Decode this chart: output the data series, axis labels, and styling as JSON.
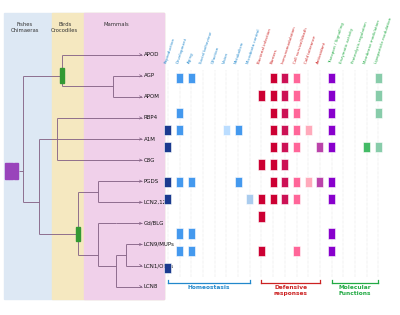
{
  "proteins": [
    "APOD",
    "AGP",
    "APOM",
    "RBP4",
    "A1M",
    "C8G",
    "PGDS",
    "LCN2,12",
    "Gd/BLG",
    "LCN9/MUPs",
    "LCN1/OBPs",
    "LCN8"
  ],
  "columns": [
    "Reproduction",
    "Development",
    "Aging",
    "Social behaviour",
    "Olfaction",
    "Vision",
    "Metabolism",
    "Microbiota control",
    "Bacterial infection",
    "Barriers",
    "Immunomodulation",
    "Cell survival/death",
    "Cold tolerance",
    "Antioxidant",
    "Transport / Signalling",
    "Enzymatic activity",
    "Proteolysis regulation",
    "Membrane modulation",
    "Lipoparticle modulation"
  ],
  "matrix": {
    "APOD": [
      0,
      1,
      1,
      0,
      0,
      0,
      0,
      0,
      0,
      1,
      1,
      1,
      0,
      0,
      1,
      0,
      0,
      0,
      1
    ],
    "AGP": [
      0,
      0,
      0,
      0,
      0,
      0,
      0,
      0,
      1,
      1,
      1,
      1,
      0,
      0,
      1,
      0,
      0,
      0,
      1
    ],
    "APOM": [
      0,
      1,
      0,
      0,
      0,
      0,
      0,
      0,
      0,
      1,
      1,
      1,
      0,
      0,
      1,
      0,
      0,
      0,
      1
    ],
    "RBP4": [
      1,
      1,
      0,
      0,
      0,
      1,
      1,
      0,
      0,
      1,
      1,
      1,
      1,
      0,
      1,
      0,
      0,
      0,
      0
    ],
    "A1M": [
      1,
      0,
      0,
      0,
      0,
      0,
      0,
      0,
      0,
      1,
      1,
      1,
      0,
      1,
      1,
      0,
      0,
      1,
      1
    ],
    "C8G": [
      0,
      0,
      0,
      0,
      0,
      0,
      0,
      0,
      1,
      1,
      1,
      0,
      0,
      0,
      0,
      0,
      0,
      0,
      0
    ],
    "PGDS": [
      1,
      1,
      1,
      0,
      0,
      0,
      1,
      0,
      0,
      1,
      1,
      1,
      1,
      1,
      1,
      0,
      0,
      0,
      0
    ],
    "LCN2,12": [
      1,
      0,
      0,
      0,
      0,
      0,
      0,
      1,
      1,
      1,
      1,
      1,
      0,
      0,
      1,
      0,
      0,
      0,
      0
    ],
    "Gd/BLG": [
      0,
      0,
      0,
      0,
      0,
      0,
      0,
      0,
      1,
      0,
      0,
      0,
      0,
      0,
      0,
      0,
      0,
      0,
      0
    ],
    "LCN9/MUPs": [
      0,
      1,
      1,
      0,
      0,
      0,
      0,
      0,
      0,
      0,
      0,
      0,
      0,
      0,
      1,
      0,
      0,
      0,
      0
    ],
    "LCN1/OBPs": [
      0,
      1,
      1,
      0,
      0,
      0,
      0,
      0,
      1,
      0,
      0,
      1,
      0,
      0,
      1,
      0,
      0,
      0,
      0
    ],
    "LCN8": [
      1,
      0,
      0,
      0,
      0,
      0,
      0,
      0,
      0,
      0,
      0,
      0,
      0,
      0,
      0,
      0,
      0,
      0,
      0
    ]
  },
  "box_colors": [
    "#1a3a8f",
    "#4499ee",
    "#4499ee",
    "#4499ee",
    "#99ccff",
    "#bbddff",
    "#4499ee",
    "#aaccee",
    "#cc0033",
    "#cc0033",
    "#cc1155",
    "#ff6699",
    "#ffaabb",
    "#bb44aa",
    "#8800cc",
    "#00aa44",
    "#00aa44",
    "#44bb66",
    "#88ccaa"
  ],
  "col_colors": [
    "#2288cc",
    "#2288cc",
    "#2288cc",
    "#2288cc",
    "#2288cc",
    "#2288cc",
    "#2288cc",
    "#2288cc",
    "#cc2222",
    "#cc2222",
    "#cc2222",
    "#cc2222",
    "#cc2222",
    "#cc2222",
    "#22aa44",
    "#22aa44",
    "#22aa44",
    "#22aa44",
    "#22aa44"
  ],
  "bg_fishes": "#dde8f4",
  "bg_birds": "#f5e8c0",
  "bg_mammals": "#f0d0ea",
  "tree_color": "#886688",
  "node_purple": "#9944bb",
  "node_green": "#339933",
  "group_labels": [
    "Homeostasis",
    "Defensive\nresponses",
    "Molecular\nFunctions"
  ],
  "group_ranges": [
    [
      0,
      7
    ],
    [
      8,
      13
    ],
    [
      14,
      18
    ]
  ],
  "group_colors": [
    "#2288cc",
    "#cc2222",
    "#22aa44"
  ]
}
